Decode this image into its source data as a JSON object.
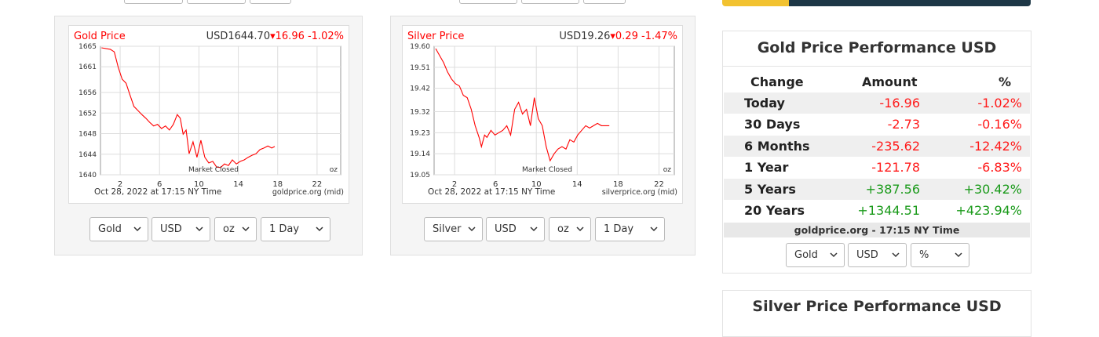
{
  "gold_chart": {
    "type": "line",
    "title": "Gold Price",
    "quote": "USD1644.70",
    "change": "16.96",
    "change_pct": "-1.02%",
    "annotation": "Market Closed",
    "unit": "oz",
    "date_label": "Oct 28, 2022 at 17:15 NY Time",
    "source": "goldprice.org (mid)",
    "color": "#ff0000",
    "xlim": [
      0,
      24.4
    ],
    "xticks": [
      2,
      6,
      10,
      14,
      18,
      22
    ],
    "ylim": [
      1640,
      1665
    ],
    "yticks": [
      1640,
      1644,
      1648,
      1652,
      1656,
      1661,
      1665
    ],
    "x": [
      0.1,
      1.0,
      1.4,
      1.8,
      2.2,
      2.6,
      3.0,
      3.4,
      3.8,
      4.2,
      4.6,
      5.0,
      5.4,
      5.8,
      6.2,
      6.6,
      7.0,
      7.4,
      7.8,
      8.1,
      8.4,
      8.7,
      9.0,
      9.4,
      9.8,
      10.2,
      10.6,
      11.0,
      11.4,
      11.8,
      12.2,
      12.6,
      13.0,
      13.4,
      13.8,
      14.2,
      14.6,
      15.0,
      15.4,
      15.8,
      16.2,
      16.6,
      17.0,
      17.4,
      17.7
    ],
    "values": [
      1664.7,
      1664.4,
      1663.9,
      1660.9,
      1658.6,
      1657.8,
      1655.5,
      1653.3,
      1652.5,
      1651.7,
      1651.0,
      1650.2,
      1649.5,
      1649.8,
      1649.0,
      1649.5,
      1648.7,
      1649.8,
      1651.7,
      1651.0,
      1647.9,
      1648.7,
      1644.1,
      1646.4,
      1643.4,
      1646.7,
      1643.4,
      1642.3,
      1642.6,
      1641.5,
      1641.4,
      1642.1,
      1641.8,
      1642.9,
      1642.1,
      1642.6,
      1642.9,
      1643.4,
      1643.8,
      1644.1,
      1644.9,
      1645.2,
      1645.6,
      1645.2,
      1645.5
    ]
  },
  "gold_selects": [
    "Gold",
    "USD",
    "oz",
    "1 Day"
  ],
  "silver_chart": {
    "type": "line",
    "title": "Silver Price",
    "quote": "USD19.26",
    "change": "0.29",
    "change_pct": "-1.47%",
    "annotation": "Market Closed",
    "unit": "oz",
    "date_label": "Oct 28, 2022 at 17:15 NY Time",
    "source": "silverprice.org (mid)",
    "color": "#ff0000",
    "xlim": [
      0,
      23.5
    ],
    "xticks": [
      2,
      6,
      10,
      14,
      18,
      22
    ],
    "ylim": [
      19.05,
      19.6
    ],
    "yticks": [
      19.05,
      19.14,
      19.23,
      19.32,
      19.42,
      19.51,
      {
        "value": 19.6,
        "label": "19.60"
      }
    ],
    "x": [
      0.15,
      0.54,
      0.93,
      1.31,
      1.7,
      2.08,
      2.47,
      2.86,
      3.24,
      3.63,
      4.02,
      4.4,
      4.63,
      4.94,
      5.17,
      5.56,
      5.95,
      6.33,
      6.72,
      7.11,
      7.49,
      7.88,
      8.26,
      8.65,
      9.04,
      9.42,
      9.81,
      10.19,
      10.58,
      10.97,
      11.35,
      11.74,
      12.12,
      12.51,
      12.9,
      13.28,
      13.67,
      14.05,
      14.44,
      14.83,
      15.21,
      15.6,
      15.98,
      16.37,
      16.76,
      17.14
    ],
    "values": [
      19.59,
      19.56,
      19.53,
      19.49,
      19.46,
      19.44,
      19.43,
      19.39,
      19.38,
      19.33,
      19.26,
      19.21,
      19.17,
      19.22,
      19.21,
      19.24,
      19.22,
      19.23,
      19.24,
      19.26,
      19.22,
      19.33,
      19.36,
      19.31,
      19.33,
      19.26,
      19.38,
      19.29,
      19.26,
      19.17,
      19.11,
      19.14,
      19.16,
      19.17,
      19.16,
      19.2,
      19.19,
      19.22,
      19.24,
      19.26,
      19.25,
      19.26,
      19.27,
      19.26,
      19.26,
      19.26
    ]
  },
  "silver_selects": [
    "Silver",
    "USD",
    "oz",
    "1 Day"
  ],
  "gold_performance": {
    "title": "Gold Price Performance USD",
    "header": [
      "Change",
      "Amount",
      "%"
    ],
    "rows": [
      [
        "Today",
        "-16.96",
        "-1.02%"
      ],
      [
        "30 Days",
        "-2.73",
        "-0.16%"
      ],
      [
        "6 Months",
        "-235.62",
        "-12.42%"
      ],
      [
        "1 Year",
        "-121.78",
        "-6.83%"
      ],
      [
        "5 Years",
        "+387.56",
        "+30.42%"
      ],
      [
        "20 Years",
        "+1344.51",
        "+423.94%"
      ]
    ],
    "footer": "goldprice.org - 17:15 NY Time",
    "selects": [
      "Gold",
      "USD",
      "%"
    ]
  },
  "silver_performance": {
    "title": "Silver Price Performance USD"
  }
}
